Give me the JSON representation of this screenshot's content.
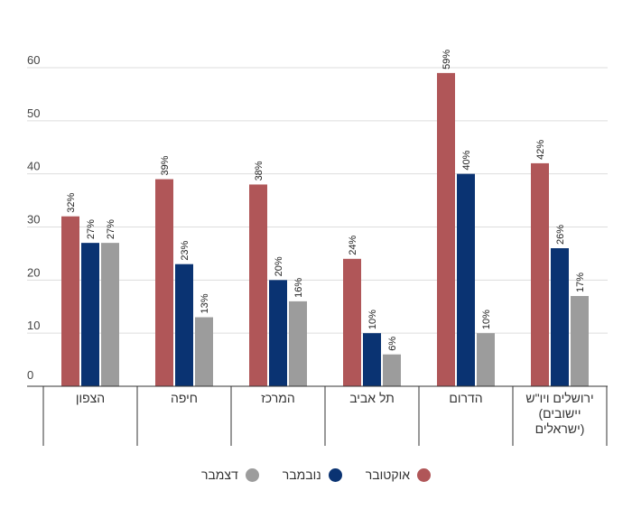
{
  "chart_data": {
    "type": "bar",
    "title": "",
    "xlabel": "",
    "ylabel": "",
    "ylim": [
      0,
      60
    ],
    "yticks": [
      0,
      10,
      20,
      30,
      40,
      50,
      60
    ],
    "grid": true,
    "legend_position": "bottom",
    "categories": [
      [
        "הצפון"
      ],
      [
        "חיפה"
      ],
      [
        "המרכז"
      ],
      [
        "תל אביב"
      ],
      [
        "הדרום"
      ],
      [
        "ירושלים ויו\"ש",
        "יישובים)",
        "(ישראלים"
      ]
    ],
    "series": [
      {
        "name": "אוקטובר",
        "color": "#b05658",
        "values": [
          32,
          39,
          38,
          24,
          59,
          42
        ],
        "labels": [
          "32%",
          "39%",
          "38%",
          "24%",
          "59%",
          "42%"
        ]
      },
      {
        "name": "נובמבר",
        "color": "#0a3372",
        "values": [
          27,
          23,
          20,
          10,
          40,
          26
        ],
        "labels": [
          "27%",
          "23%",
          "20%",
          "10%",
          "40%",
          "26%"
        ]
      },
      {
        "name": "דצמבר",
        "color": "#9c9c9c",
        "values": [
          27,
          13,
          16,
          6,
          10,
          17
        ],
        "labels": [
          "27%",
          "13%",
          "16%",
          "6%",
          "10%",
          "17%"
        ]
      }
    ]
  }
}
